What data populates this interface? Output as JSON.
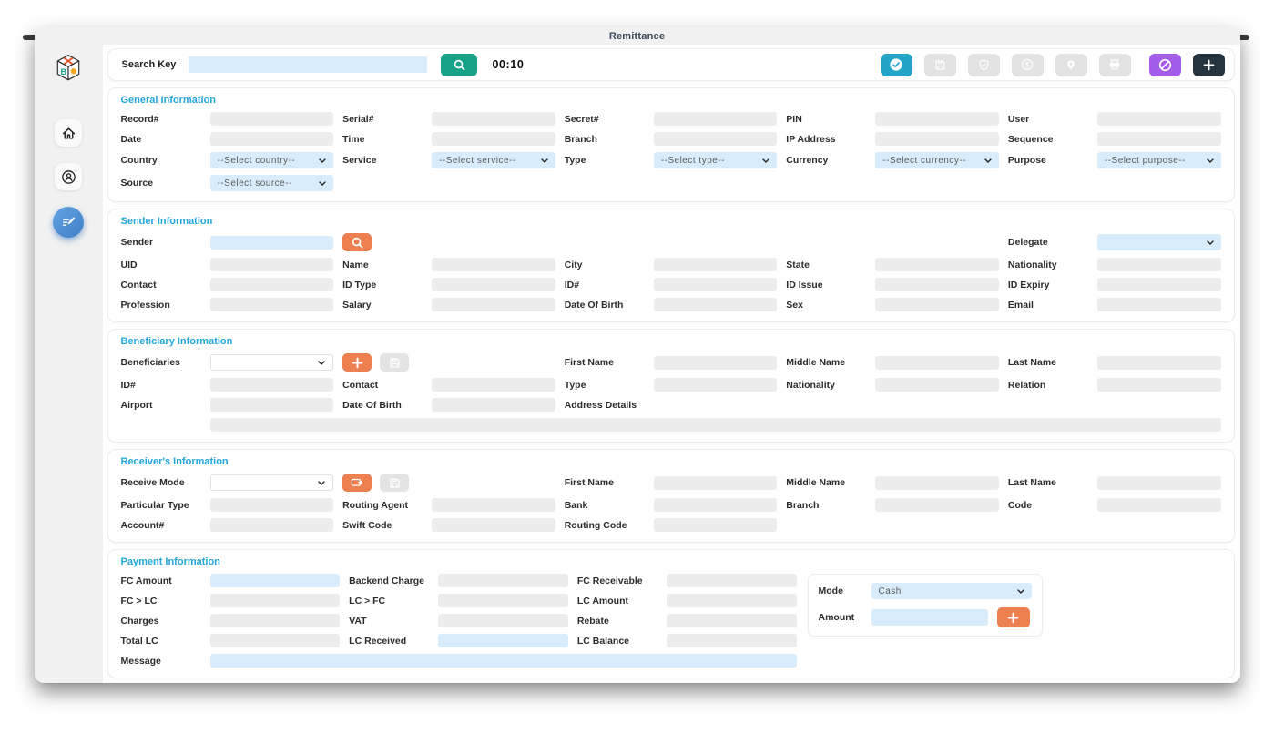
{
  "colors": {
    "accent_blue": "#24a7d9",
    "teal": "#17a287",
    "toolbar_teal": "#23a5c7",
    "purple": "#a55ce8",
    "dark_navy": "#24333e",
    "orange": "#ec8050",
    "field_blue": "#d9ecfc",
    "field_gray": "#ececec"
  },
  "window": {
    "title": "Remittance"
  },
  "sidebar": {
    "items": [
      {
        "name": "sidebar-item-home",
        "icon": "home-icon",
        "active": false
      },
      {
        "name": "sidebar-item-customers",
        "icon": "user-circle-icon",
        "active": false
      },
      {
        "name": "sidebar-item-remittance",
        "icon": "edit-note-icon",
        "active": true
      }
    ]
  },
  "toolbar": {
    "search_label": "Search Key",
    "search_value": "",
    "search_button_icon": "magnifier-icon",
    "timer": "00:10",
    "buttons": [
      {
        "name": "approve-button",
        "icon": "check-circle-icon",
        "style": "teal"
      },
      {
        "name": "save-button",
        "icon": "save-icon",
        "style": "disabled"
      },
      {
        "name": "verify-button",
        "icon": "shield-check-icon",
        "style": "disabled"
      },
      {
        "name": "charges-button",
        "icon": "dollar-circle-icon",
        "style": "disabled"
      },
      {
        "name": "location-button",
        "icon": "location-pin-icon",
        "style": "disabled"
      },
      {
        "name": "print-button",
        "icon": "printer-icon",
        "style": "disabled"
      },
      {
        "name": "cancel-button",
        "icon": "ban-icon",
        "style": "purple"
      },
      {
        "name": "add-button",
        "icon": "plus-icon",
        "style": "dark"
      }
    ]
  },
  "sections": [
    {
      "id": "general",
      "title": "General Information",
      "cols": 5,
      "rows": [
        [
          {
            "label": "Record#",
            "type": "i"
          },
          {
            "label": "Serial#",
            "type": "i"
          },
          {
            "label": "Secret#",
            "type": "i"
          },
          {
            "label": "PIN",
            "type": "i"
          },
          {
            "label": "User",
            "type": "i"
          }
        ],
        [
          {
            "label": "Date",
            "type": "i"
          },
          {
            "label": "Time",
            "type": "i"
          },
          {
            "label": "Branch",
            "type": "i"
          },
          {
            "label": "IP Address",
            "type": "i"
          },
          {
            "label": "Sequence",
            "type": "i"
          }
        ],
        [
          {
            "label": "Country",
            "type": "s",
            "value": "--Select country--"
          },
          {
            "label": "Service",
            "type": "s",
            "value": "--Select service--"
          },
          {
            "label": "Type",
            "type": "s",
            "value": "--Select type--"
          },
          {
            "label": "Currency",
            "type": "s",
            "value": "--Select currency--"
          },
          {
            "label": "Purpose",
            "type": "s",
            "value": "--Select purpose--"
          }
        ],
        [
          {
            "label": "Source",
            "type": "s",
            "value": "--Select source--"
          }
        ]
      ]
    },
    {
      "id": "sender",
      "title": "Sender Information",
      "cols": 5,
      "rows": [
        [
          {
            "label": "Sender",
            "type": "ib",
            "actions": [
              {
                "name": "sender-search-button",
                "icon": "magnifier-icon",
                "style": "orange"
              }
            ]
          },
          {
            "label": "Delegate",
            "type": "s",
            "value": "",
            "col": 9
          }
        ],
        [
          {
            "label": "UID",
            "type": "i"
          },
          {
            "label": "Name",
            "type": "i"
          },
          {
            "label": "City",
            "type": "i"
          },
          {
            "label": "State",
            "type": "i"
          },
          {
            "label": "Nationality",
            "type": "i"
          }
        ],
        [
          {
            "label": "Contact",
            "type": "i"
          },
          {
            "label": "ID Type",
            "type": "i"
          },
          {
            "label": "ID#",
            "type": "i"
          },
          {
            "label": "ID Issue",
            "type": "i"
          },
          {
            "label": "ID Expiry",
            "type": "i"
          }
        ],
        [
          {
            "label": "Profession",
            "type": "i"
          },
          {
            "label": "Salary",
            "type": "i"
          },
          {
            "label": "Date Of Birth",
            "type": "i"
          },
          {
            "label": "Sex",
            "type": "i"
          },
          {
            "label": "Email",
            "type": "i"
          }
        ]
      ]
    },
    {
      "id": "beneficiary",
      "title": "Beneficiary Information",
      "cols": 5,
      "rows": [
        [
          {
            "label": "Beneficiaries",
            "type": "sw",
            "value": "",
            "actions": [
              {
                "name": "add-beneficiary-button",
                "icon": "plus-icon",
                "style": "orange"
              },
              {
                "name": "save-beneficiary-button",
                "icon": "save-icon",
                "style": "gray"
              }
            ]
          }
        ],
        [
          {
            "label": "First Name",
            "type": "i"
          },
          {
            "label": "Middle Name",
            "type": "i"
          },
          {
            "label": "Last Name",
            "type": "i"
          },
          {
            "label": "ID#",
            "type": "i"
          },
          {
            "label": "Contact",
            "type": "i"
          }
        ],
        [
          {
            "label": "Type",
            "type": "i"
          },
          {
            "label": "Nationality",
            "type": "i"
          },
          {
            "label": "Relation",
            "type": "i"
          },
          {
            "label": "Airport",
            "type": "i"
          },
          {
            "label": "Date Of Birth",
            "type": "i"
          }
        ],
        [
          {
            "label": "Address Details",
            "type": "i",
            "span": "rest"
          }
        ]
      ]
    },
    {
      "id": "receiver",
      "title": "Receiver's Information",
      "cols": 5,
      "rows": [
        [
          {
            "label": "Receive Mode",
            "type": "sw",
            "value": "",
            "actions": [
              {
                "name": "receive-mode-button",
                "icon": "transfer-icon",
                "style": "orange"
              },
              {
                "name": "save-receiver-button",
                "icon": "save-icon",
                "style": "gray"
              }
            ]
          }
        ],
        [
          {
            "label": "First Name",
            "type": "i"
          },
          {
            "label": "Middle Name",
            "type": "i"
          },
          {
            "label": "Last Name",
            "type": "i"
          },
          {
            "label": "Particular Type",
            "type": "i"
          },
          {
            "label": "Routing Agent",
            "type": "i"
          }
        ],
        [
          {
            "label": "Bank",
            "type": "i"
          },
          {
            "label": "Branch",
            "type": "i"
          },
          {
            "label": "Code",
            "type": "i"
          },
          {
            "label": "Account#",
            "type": "i"
          },
          {
            "label": "Swift Code",
            "type": "i"
          }
        ],
        [
          {
            "label": "Routing Code",
            "type": "i"
          }
        ]
      ]
    },
    {
      "id": "payment",
      "title": "Payment Information",
      "cols": 3,
      "rows": [
        [
          {
            "label": "FC Amount",
            "type": "ib"
          },
          {
            "label": "Backend Charge",
            "type": "i"
          },
          {
            "label": "FC Receivable",
            "type": "i"
          }
        ],
        [
          {
            "label": "FC > LC",
            "type": "i"
          },
          {
            "label": "LC > FC",
            "type": "i"
          },
          {
            "label": "LC Amount",
            "type": "i"
          }
        ],
        [
          {
            "label": "Charges",
            "type": "i"
          },
          {
            "label": "VAT",
            "type": "i"
          },
          {
            "label": "Rebate",
            "type": "i"
          }
        ],
        [
          {
            "label": "Total LC",
            "type": "i"
          },
          {
            "label": "LC Received",
            "type": "ib"
          },
          {
            "label": "LC Balance",
            "type": "i"
          }
        ],
        [
          {
            "label": "Message",
            "type": "ib",
            "span": "rest"
          }
        ]
      ],
      "side_panel": {
        "mode_label": "Mode",
        "mode_value": "Cash",
        "amount_label": "Amount",
        "amount_value": "",
        "add_button": {
          "name": "payment-add-button",
          "icon": "plus-icon",
          "style": "orange"
        }
      }
    }
  ]
}
